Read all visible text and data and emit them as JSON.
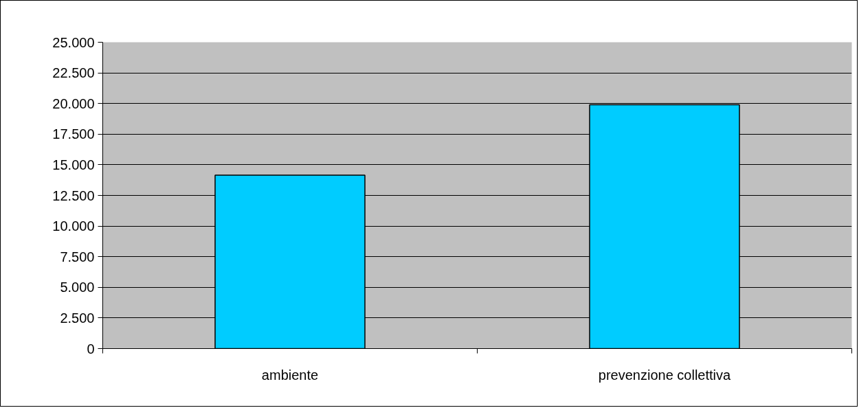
{
  "chart_data": {
    "type": "bar",
    "categories": [
      "ambiente",
      "prevenzione collettiva"
    ],
    "values": [
      14150,
      19900
    ],
    "color": "#00ccff",
    "ylim": [
      0,
      25000
    ],
    "yticks": [
      {
        "value": 0,
        "label": "0"
      },
      {
        "value": 2500,
        "label": "2.500"
      },
      {
        "value": 5000,
        "label": "5.000"
      },
      {
        "value": 7500,
        "label": "7.500"
      },
      {
        "value": 10000,
        "label": "10.000"
      },
      {
        "value": 12500,
        "label": "12.500"
      },
      {
        "value": 15000,
        "label": "15.000"
      },
      {
        "value": 17500,
        "label": "17.500"
      },
      {
        "value": 20000,
        "label": "20.000"
      },
      {
        "value": 22500,
        "label": "22.500"
      },
      {
        "value": 25000,
        "label": "25.000"
      }
    ],
    "grid": "y"
  }
}
